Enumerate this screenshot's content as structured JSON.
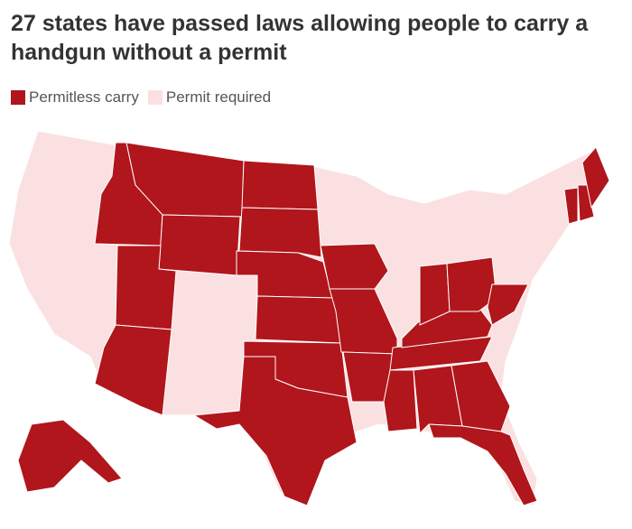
{
  "title": "27 states have passed laws allowing people to carry a handgun without a permit",
  "legend": [
    {
      "label": "Permitless carry",
      "color": "#b0161b"
    },
    {
      "label": "Permit required",
      "color": "#fbe0e2"
    }
  ]
}
